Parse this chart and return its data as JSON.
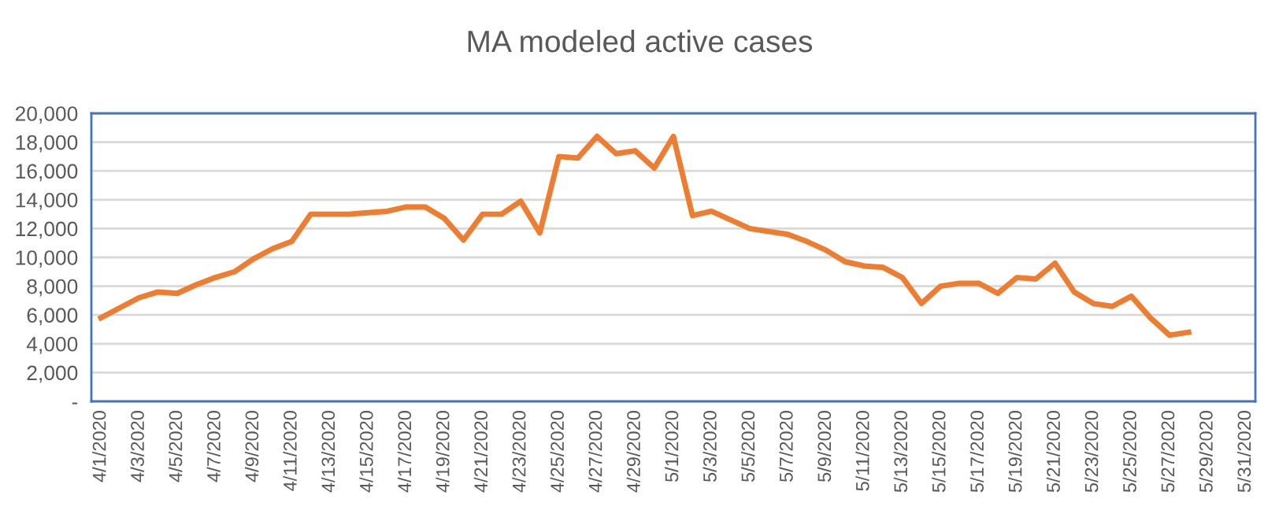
{
  "chart_data": {
    "type": "line",
    "title": "MA modeled active cases",
    "categories": [
      "4/1/2020",
      null,
      "4/3/2020",
      null,
      "4/5/2020",
      null,
      "4/7/2020",
      null,
      "4/9/2020",
      null,
      "4/11/2020",
      null,
      "4/13/2020",
      null,
      "4/15/2020",
      null,
      "4/17/2020",
      null,
      "4/19/2020",
      null,
      "4/21/2020",
      null,
      "4/23/2020",
      null,
      "4/25/2020",
      null,
      "4/27/2020",
      null,
      "4/29/2020",
      null,
      "5/1/2020",
      null,
      "5/3/2020",
      null,
      "5/5/2020",
      null,
      "5/7/2020",
      null,
      "5/9/2020",
      null,
      "5/11/2020",
      null,
      "5/13/2020",
      null,
      "5/15/2020",
      null,
      "5/17/2020",
      null,
      "5/19/2020",
      null,
      "5/21/2020",
      null,
      "5/23/2020",
      null,
      "5/25/2020",
      null,
      "5/27/2020",
      null,
      "5/29/2020",
      null,
      "5/31/2020"
    ],
    "series": [
      {
        "color": "#ed7d31",
        "values": [
          5800,
          6500,
          7200,
          7600,
          7500,
          8100,
          8600,
          9000,
          9900,
          10600,
          11100,
          13000,
          13000,
          13000,
          13100,
          13200,
          13500,
          13500,
          12700,
          11200,
          13000,
          13000,
          13900,
          11700,
          17000,
          16900,
          18400,
          17200,
          17400,
          16200,
          18400,
          12900,
          13200,
          12600,
          12000,
          11800,
          11600,
          11100,
          10500,
          9700,
          9400,
          9300,
          8600,
          6800,
          8000,
          8200,
          8200,
          7500,
          8600,
          8500,
          9600,
          7600,
          6800,
          6600,
          7300,
          5800,
          4600,
          4800,
          null,
          null,
          null
        ]
      }
    ],
    "ylim": [
      0,
      20000
    ],
    "yticks": [
      {
        "value": 0,
        "label": "-"
      },
      {
        "value": 2000,
        "label": "2,000"
      },
      {
        "value": 4000,
        "label": "4,000"
      },
      {
        "value": 6000,
        "label": "6,000"
      },
      {
        "value": 8000,
        "label": "8,000"
      },
      {
        "value": 10000,
        "label": "10,000"
      },
      {
        "value": 12000,
        "label": "12,000"
      },
      {
        "value": 14000,
        "label": "14,000"
      },
      {
        "value": 16000,
        "label": "16,000"
      },
      {
        "value": 18000,
        "label": "18,000"
      },
      {
        "value": 20000,
        "label": "20,000"
      }
    ],
    "grid": "y",
    "marker": "none",
    "line_style": "solid"
  }
}
